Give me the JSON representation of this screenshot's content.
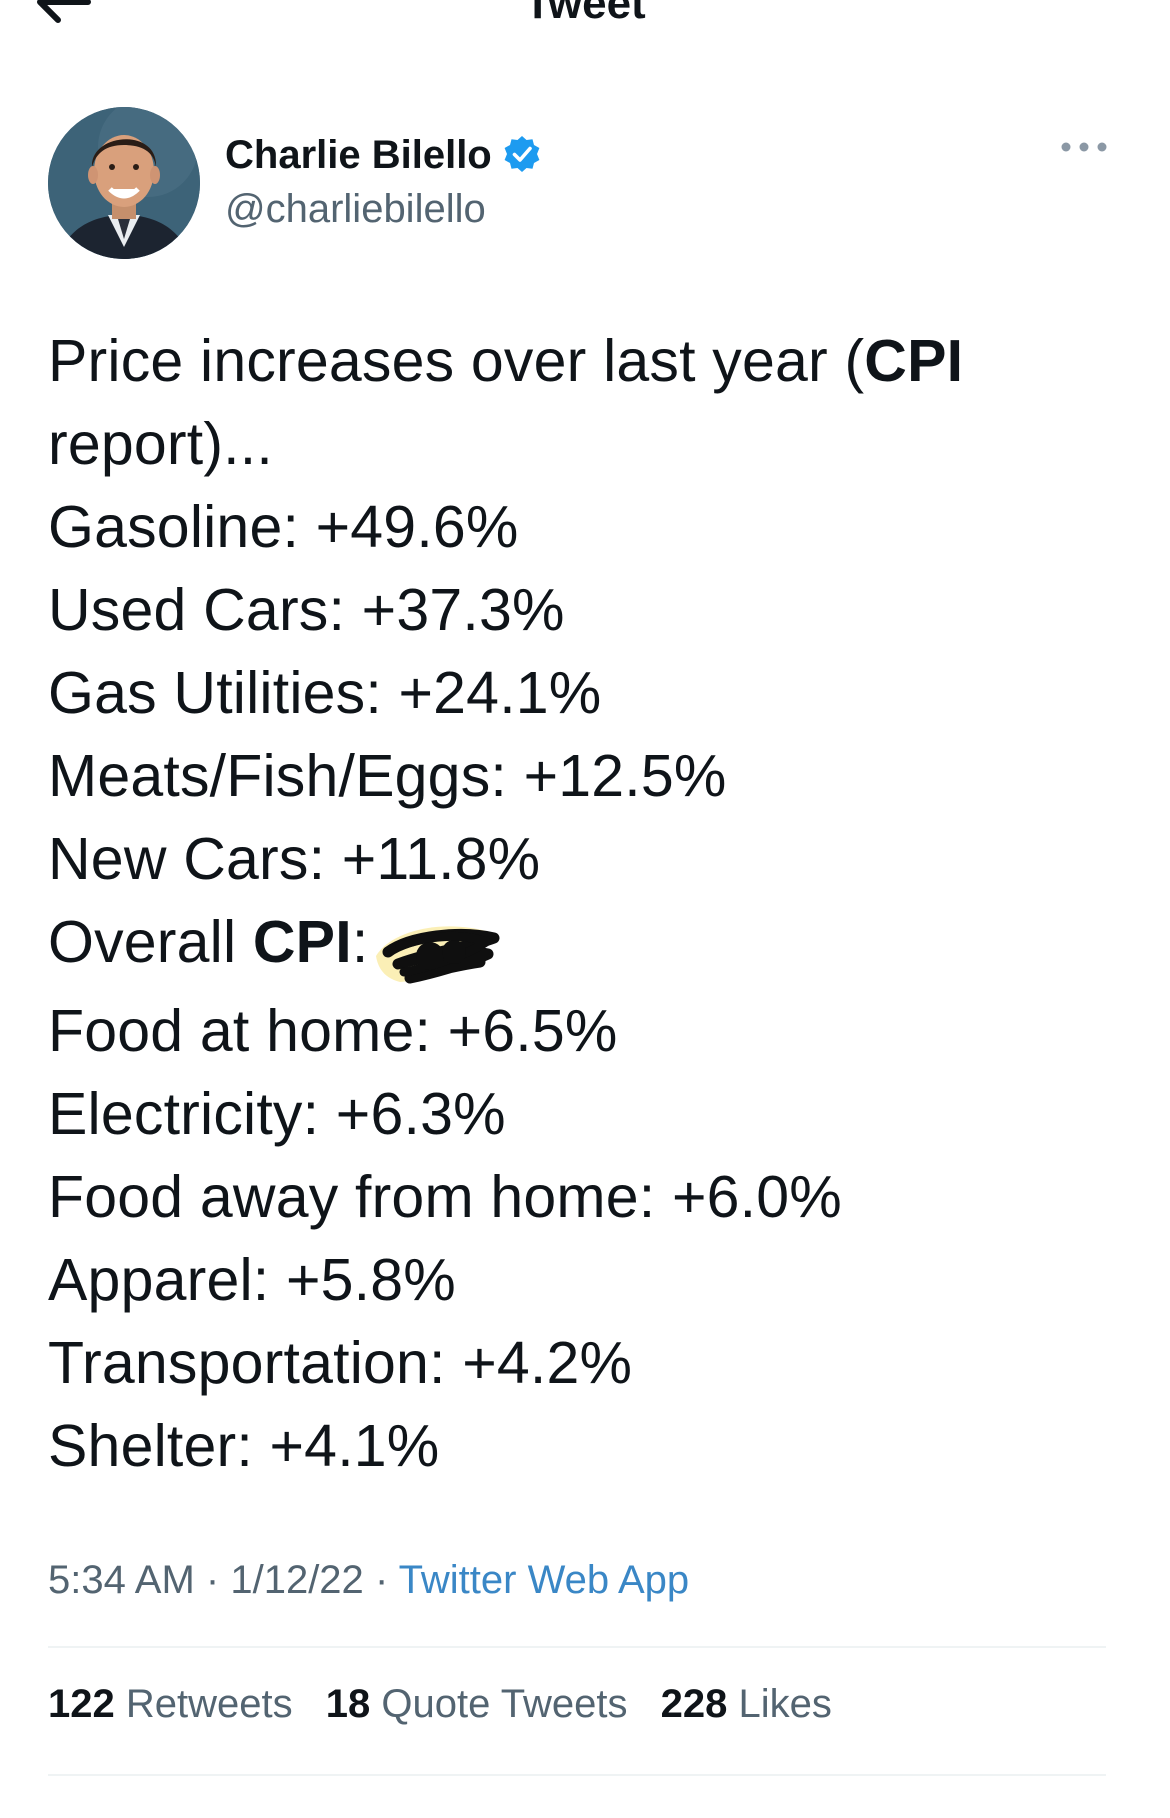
{
  "header": {
    "title": "Tweet",
    "back_icon": "arrow-left-icon"
  },
  "author": {
    "display_name": "Charlie Bilello",
    "handle": "@charliebilello",
    "verified": true,
    "verified_color": "#1d9bf0",
    "avatar_icon": "profile-photo",
    "more_icon": "more-horizontal-icon"
  },
  "tweet": {
    "line1_prefix": "Price increases over last year (",
    "line1_bold": "CPI",
    "line2": "report)...",
    "items": [
      "Gasoline: +49.6%",
      "Used Cars: +37.3%",
      "Gas Utilities: +24.1%",
      "Meats/Fish/Eggs: +12.5%",
      "New Cars: +11.8%"
    ],
    "overall_prefix": "Overall ",
    "overall_bold": "CPI",
    "overall_colon": ":",
    "overall_value_redacted": true,
    "items_after": [
      "Food at home: +6.5%",
      "Electricity: +6.3%",
      "Food away from home: +6.0%",
      "Apparel: +5.8%",
      "Transportation: +4.2%",
      "Shelter: +4.1%"
    ]
  },
  "meta": {
    "time": "5:34 AM",
    "separator": "·",
    "date": "1/12/22",
    "source": "Twitter Web App",
    "source_color": "#3a87c6"
  },
  "stats": {
    "retweets_count": "122",
    "retweets_label": "Retweets",
    "quotes_count": "18",
    "quotes_label": "Quote Tweets",
    "likes_count": "228",
    "likes_label": "Likes"
  }
}
